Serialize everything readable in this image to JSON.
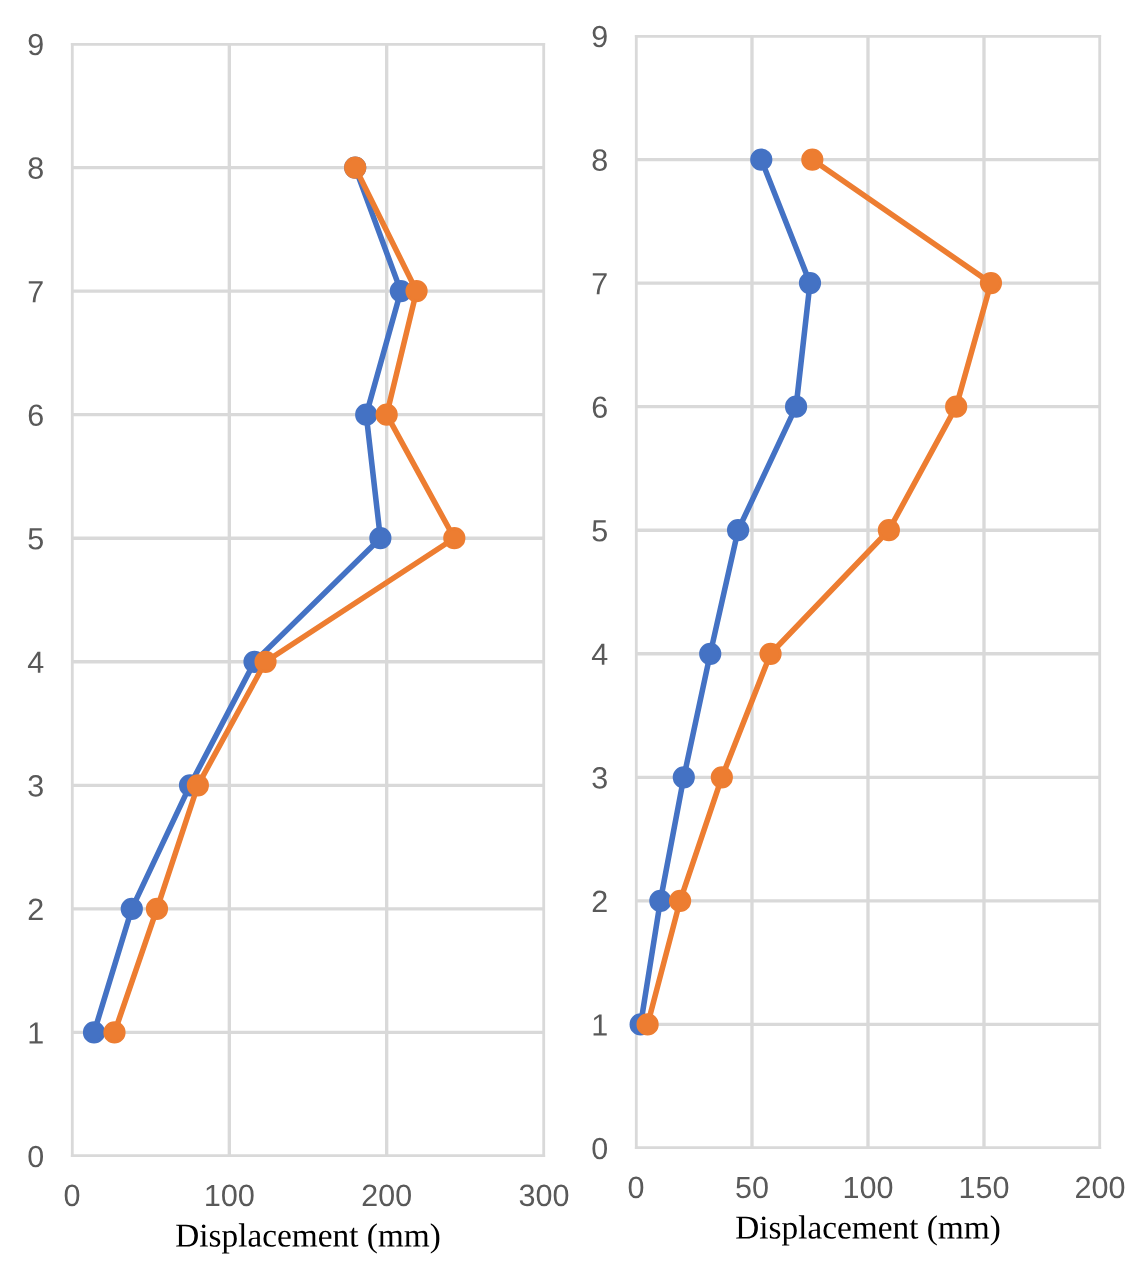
{
  "chart_data": [
    {
      "type": "line",
      "xlabel": "Displacement (mm)",
      "xlim": [
        0,
        300
      ],
      "xticks": [
        0,
        100,
        200,
        300
      ],
      "ylim": [
        0,
        9
      ],
      "yticks": [
        0,
        1,
        2,
        3,
        4,
        5,
        6,
        7,
        8,
        9
      ],
      "grid": true,
      "marker": "circle",
      "line_style": "solid",
      "series": [
        {
          "color": "#4472c4",
          "x": [
            14,
            38,
            75,
            116,
            196,
            187,
            209,
            180
          ],
          "values": [
            1,
            2,
            3,
            4,
            5,
            6,
            7,
            8
          ]
        },
        {
          "color": "#ed7d31",
          "x": [
            27,
            54,
            80,
            123,
            243,
            200,
            219,
            180
          ],
          "values": [
            1,
            2,
            3,
            4,
            5,
            6,
            7,
            8
          ]
        }
      ]
    },
    {
      "type": "line",
      "xlabel": "Displacement (mm)",
      "xlim": [
        0,
        200
      ],
      "xticks": [
        0,
        50,
        100,
        150,
        200
      ],
      "ylim": [
        0,
        9
      ],
      "yticks": [
        0,
        1,
        2,
        3,
        4,
        5,
        6,
        7,
        8,
        9
      ],
      "grid": true,
      "marker": "circle",
      "line_style": "solid",
      "series": [
        {
          "color": "#4472c4",
          "x": [
            2,
            10.5,
            20.6,
            32,
            44,
            69,
            75,
            54
          ],
          "values": [
            1,
            2,
            3,
            4,
            5,
            6,
            7,
            8
          ]
        },
        {
          "color": "#ed7d31",
          "x": [
            5,
            19,
            37,
            58,
            109,
            138,
            153,
            76
          ],
          "values": [
            1,
            2,
            3,
            4,
            5,
            6,
            7,
            8
          ]
        }
      ]
    }
  ]
}
